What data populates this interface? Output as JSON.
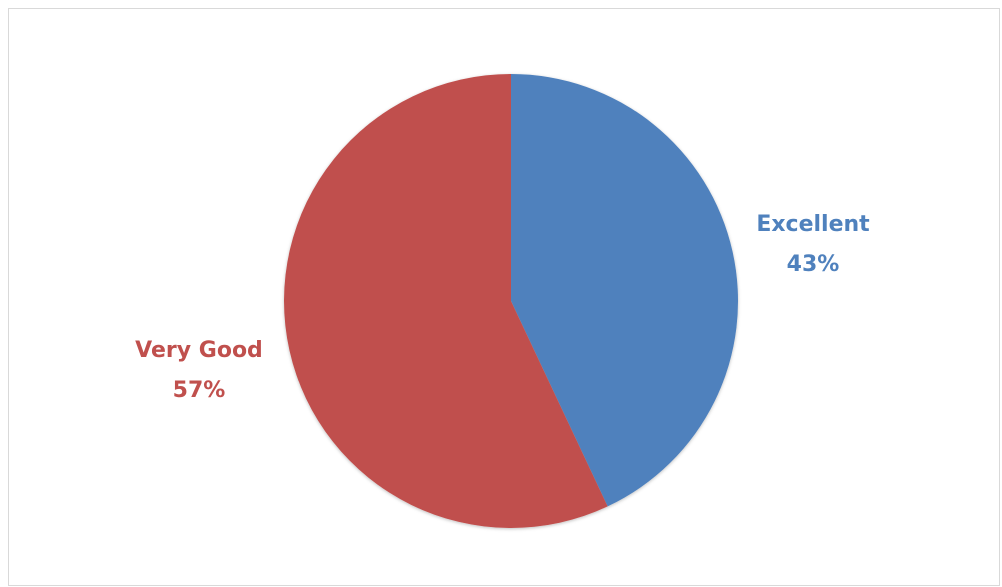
{
  "chart_data": {
    "type": "pie",
    "title": "",
    "categories": [
      "Excellent",
      "Very Good"
    ],
    "values": [
      43,
      57
    ],
    "value_labels": [
      "43%",
      "57%"
    ],
    "colors": [
      "#4f81bd",
      "#c0504d"
    ],
    "start_angle_deg": 0,
    "direction": "clockwise",
    "legend": "none",
    "data_labels": "outside, category name and percentage"
  }
}
